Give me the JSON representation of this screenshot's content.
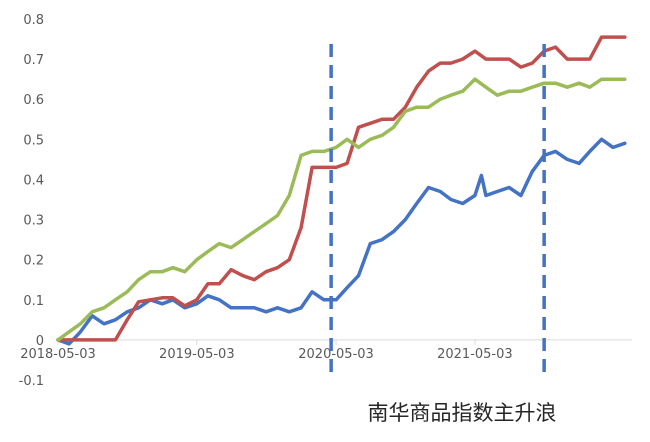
{
  "chart_data": {
    "type": "line",
    "title": "",
    "caption": "南华商品指数主升浪",
    "xlabel": "",
    "ylabel": "",
    "ylim": [
      -0.1,
      0.8
    ],
    "y_ticks": [
      "-0.1",
      "0",
      "0.1",
      "0.2",
      "0.3",
      "0.4",
      "0.5",
      "0.6",
      "0.7",
      "0.8"
    ],
    "x_ticks": [
      {
        "date": "2018-05-03",
        "label": "2018-05-03"
      },
      {
        "date": "2019-05-03",
        "label": "2019-05-03"
      },
      {
        "date": "2020-05-03",
        "label": "2020-05-03"
      },
      {
        "date": "2021-05-03",
        "label": "2021-05-03"
      }
    ],
    "x_range": [
      "2018-05-03",
      "2022-06-20"
    ],
    "grid": false,
    "legend": "none",
    "vertical_markers": [
      {
        "date": "2020-04-20",
        "style": "dashed",
        "color": "#4472c4"
      },
      {
        "date": "2021-11-01",
        "style": "dashed",
        "color": "#4472c4"
      }
    ],
    "series": [
      {
        "color": "#4472c4",
        "points": [
          [
            "2018-05-03",
            0.0
          ],
          [
            "2018-06-01",
            -0.01
          ],
          [
            "2018-07-01",
            0.02
          ],
          [
            "2018-08-01",
            0.06
          ],
          [
            "2018-09-01",
            0.04
          ],
          [
            "2018-10-01",
            0.05
          ],
          [
            "2018-11-01",
            0.07
          ],
          [
            "2018-12-01",
            0.08
          ],
          [
            "2019-01-01",
            0.1
          ],
          [
            "2019-02-01",
            0.09
          ],
          [
            "2019-03-01",
            0.1
          ],
          [
            "2019-04-01",
            0.08
          ],
          [
            "2019-05-03",
            0.09
          ],
          [
            "2019-06-01",
            0.11
          ],
          [
            "2019-07-01",
            0.1
          ],
          [
            "2019-08-01",
            0.08
          ],
          [
            "2019-09-01",
            0.08
          ],
          [
            "2019-10-01",
            0.08
          ],
          [
            "2019-11-01",
            0.07
          ],
          [
            "2019-12-01",
            0.08
          ],
          [
            "2020-01-01",
            0.07
          ],
          [
            "2020-02-01",
            0.08
          ],
          [
            "2020-03-01",
            0.12
          ],
          [
            "2020-04-01",
            0.1
          ],
          [
            "2020-05-03",
            0.1
          ],
          [
            "2020-06-01",
            0.13
          ],
          [
            "2020-07-01",
            0.16
          ],
          [
            "2020-08-01",
            0.24
          ],
          [
            "2020-09-01",
            0.25
          ],
          [
            "2020-10-01",
            0.27
          ],
          [
            "2020-11-01",
            0.3
          ],
          [
            "2020-12-01",
            0.34
          ],
          [
            "2021-01-01",
            0.38
          ],
          [
            "2021-02-01",
            0.37
          ],
          [
            "2021-03-01",
            0.35
          ],
          [
            "2021-04-01",
            0.34
          ],
          [
            "2021-05-03",
            0.36
          ],
          [
            "2021-05-20",
            0.41
          ],
          [
            "2021-06-01",
            0.36
          ],
          [
            "2021-07-01",
            0.37
          ],
          [
            "2021-08-01",
            0.38
          ],
          [
            "2021-09-01",
            0.36
          ],
          [
            "2021-10-01",
            0.42
          ],
          [
            "2021-11-01",
            0.46
          ],
          [
            "2021-12-01",
            0.47
          ],
          [
            "2022-01-01",
            0.45
          ],
          [
            "2022-02-01",
            0.44
          ],
          [
            "2022-03-01",
            0.47
          ],
          [
            "2022-04-01",
            0.5
          ],
          [
            "2022-05-01",
            0.48
          ],
          [
            "2022-06-01",
            0.49
          ]
        ]
      },
      {
        "color": "#c0504d",
        "points": [
          [
            "2018-05-03",
            0.0
          ],
          [
            "2018-08-01",
            0.0
          ],
          [
            "2018-09-01",
            0.0
          ],
          [
            "2018-10-01",
            0.0
          ],
          [
            "2018-11-01",
            0.05
          ],
          [
            "2018-12-01",
            0.095
          ],
          [
            "2019-01-01",
            0.1
          ],
          [
            "2019-02-01",
            0.105
          ],
          [
            "2019-03-01",
            0.105
          ],
          [
            "2019-04-01",
            0.085
          ],
          [
            "2019-05-03",
            0.1
          ],
          [
            "2019-06-01",
            0.14
          ],
          [
            "2019-07-01",
            0.14
          ],
          [
            "2019-08-01",
            0.175
          ],
          [
            "2019-09-01",
            0.16
          ],
          [
            "2019-10-01",
            0.15
          ],
          [
            "2019-11-01",
            0.17
          ],
          [
            "2019-12-01",
            0.18
          ],
          [
            "2020-01-01",
            0.2
          ],
          [
            "2020-02-01",
            0.28
          ],
          [
            "2020-03-01",
            0.43
          ],
          [
            "2020-04-01",
            0.43
          ],
          [
            "2020-05-03",
            0.43
          ],
          [
            "2020-06-01",
            0.44
          ],
          [
            "2020-07-01",
            0.53
          ],
          [
            "2020-08-01",
            0.54
          ],
          [
            "2020-09-01",
            0.55
          ],
          [
            "2020-10-01",
            0.55
          ],
          [
            "2020-11-01",
            0.58
          ],
          [
            "2020-12-01",
            0.63
          ],
          [
            "2021-01-01",
            0.67
          ],
          [
            "2021-02-01",
            0.69
          ],
          [
            "2021-03-01",
            0.69
          ],
          [
            "2021-04-01",
            0.7
          ],
          [
            "2021-05-03",
            0.72
          ],
          [
            "2021-06-01",
            0.7
          ],
          [
            "2021-07-01",
            0.7
          ],
          [
            "2021-08-01",
            0.7
          ],
          [
            "2021-09-01",
            0.68
          ],
          [
            "2021-10-01",
            0.69
          ],
          [
            "2021-11-01",
            0.72
          ],
          [
            "2021-12-01",
            0.73
          ],
          [
            "2022-01-01",
            0.7
          ],
          [
            "2022-02-01",
            0.7
          ],
          [
            "2022-03-01",
            0.7
          ],
          [
            "2022-04-01",
            0.755
          ],
          [
            "2022-06-01",
            0.755
          ]
        ]
      },
      {
        "color": "#9bbb59",
        "points": [
          [
            "2018-05-03",
            0.0
          ],
          [
            "2018-06-01",
            0.02
          ],
          [
            "2018-07-01",
            0.04
          ],
          [
            "2018-08-01",
            0.07
          ],
          [
            "2018-09-01",
            0.08
          ],
          [
            "2018-10-01",
            0.1
          ],
          [
            "2018-11-01",
            0.12
          ],
          [
            "2018-12-01",
            0.15
          ],
          [
            "2019-01-01",
            0.17
          ],
          [
            "2019-02-01",
            0.17
          ],
          [
            "2019-03-01",
            0.18
          ],
          [
            "2019-04-01",
            0.17
          ],
          [
            "2019-05-03",
            0.2
          ],
          [
            "2019-06-01",
            0.22
          ],
          [
            "2019-07-01",
            0.24
          ],
          [
            "2019-08-01",
            0.23
          ],
          [
            "2019-09-01",
            0.25
          ],
          [
            "2019-10-01",
            0.27
          ],
          [
            "2019-11-01",
            0.29
          ],
          [
            "2019-12-01",
            0.31
          ],
          [
            "2020-01-01",
            0.36
          ],
          [
            "2020-02-01",
            0.46
          ],
          [
            "2020-03-01",
            0.47
          ],
          [
            "2020-04-01",
            0.47
          ],
          [
            "2020-05-03",
            0.48
          ],
          [
            "2020-06-01",
            0.5
          ],
          [
            "2020-07-01",
            0.48
          ],
          [
            "2020-08-01",
            0.5
          ],
          [
            "2020-09-01",
            0.51
          ],
          [
            "2020-10-01",
            0.53
          ],
          [
            "2020-11-01",
            0.57
          ],
          [
            "2020-12-01",
            0.58
          ],
          [
            "2021-01-01",
            0.58
          ],
          [
            "2021-02-01",
            0.6
          ],
          [
            "2021-03-01",
            0.61
          ],
          [
            "2021-04-01",
            0.62
          ],
          [
            "2021-05-03",
            0.65
          ],
          [
            "2021-06-01",
            0.63
          ],
          [
            "2021-07-01",
            0.61
          ],
          [
            "2021-08-01",
            0.62
          ],
          [
            "2021-09-01",
            0.62
          ],
          [
            "2021-10-01",
            0.63
          ],
          [
            "2021-11-01",
            0.64
          ],
          [
            "2021-12-01",
            0.64
          ],
          [
            "2022-01-01",
            0.63
          ],
          [
            "2022-02-01",
            0.64
          ],
          [
            "2022-03-01",
            0.63
          ],
          [
            "2022-04-01",
            0.65
          ],
          [
            "2022-06-01",
            0.65
          ]
        ]
      }
    ]
  }
}
